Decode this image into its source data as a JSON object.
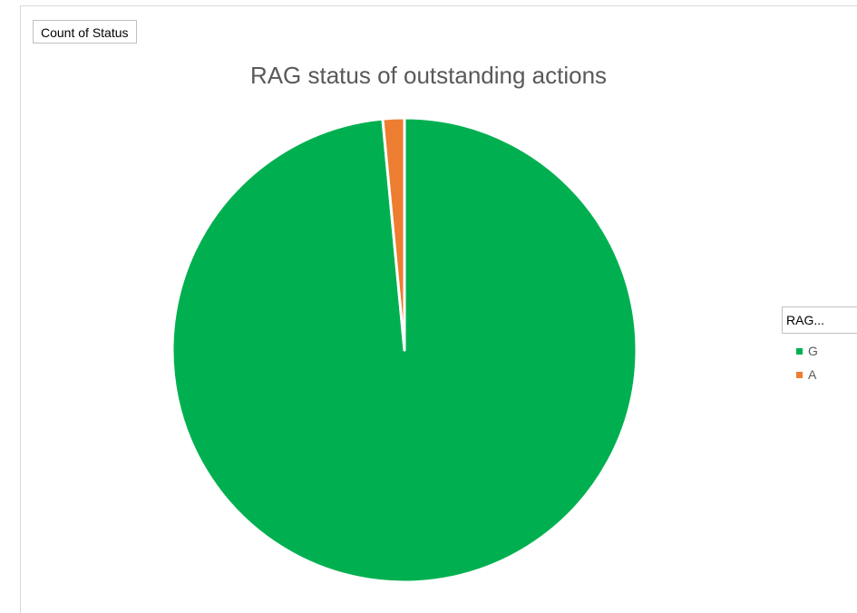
{
  "pivot": {
    "field_button_label": "Count of Status",
    "legend_field_label": "RAG..."
  },
  "chart_data": {
    "type": "pie",
    "title": "RAG status of outstanding actions",
    "categories": [
      "G",
      "A"
    ],
    "values": [
      98.5,
      1.5
    ],
    "colors": [
      "#00b050",
      "#ed7d31"
    ],
    "legend_placement": "right"
  }
}
